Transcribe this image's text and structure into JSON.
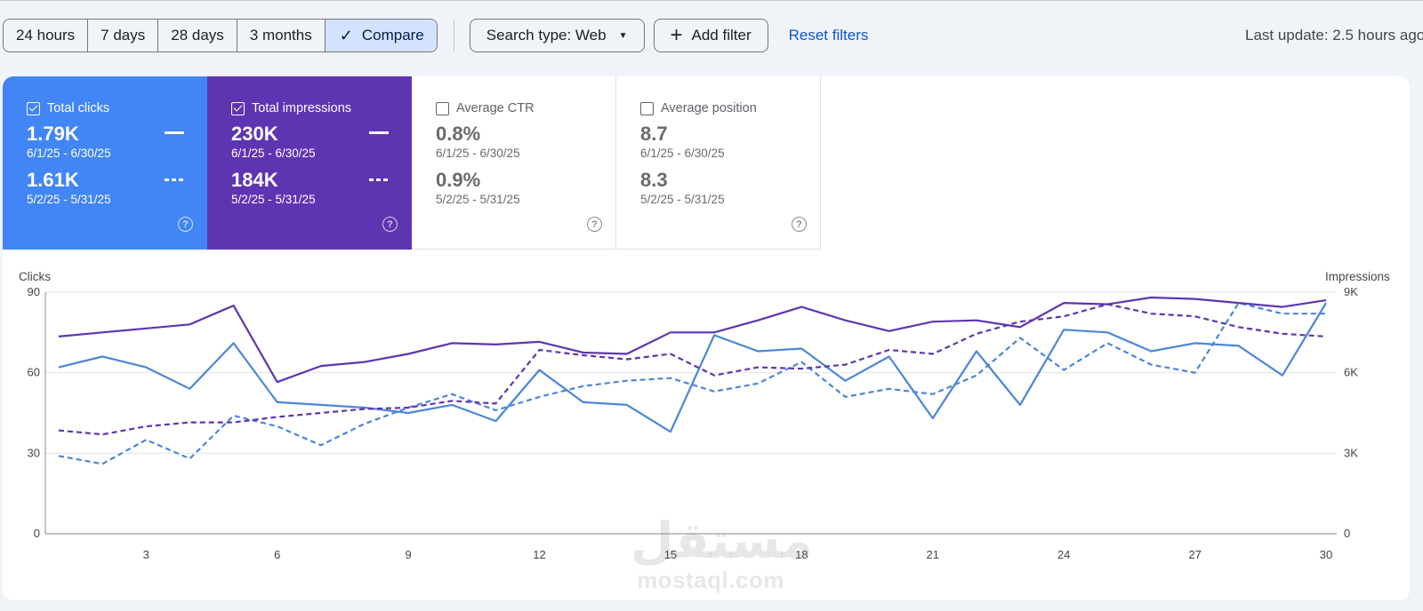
{
  "toolbar": {
    "ranges": [
      {
        "label": "24 hours",
        "active": false
      },
      {
        "label": "7 days",
        "active": false
      },
      {
        "label": "28 days",
        "active": false
      },
      {
        "label": "3 months",
        "active": false
      },
      {
        "label": "Compare",
        "active": true
      }
    ],
    "search_type_label": "Search type: Web",
    "add_filter_label": "Add filter",
    "reset_filters_label": "Reset filters",
    "last_update": "Last update: 2.5 hours ago"
  },
  "metrics": [
    {
      "title": "Total clicks",
      "checked": true,
      "current_value": "1.79K",
      "current_range": "6/1/25 - 6/30/25",
      "previous_value": "1.61K",
      "previous_range": "5/2/25 - 5/31/25",
      "color": "#4285f4"
    },
    {
      "title": "Total impressions",
      "checked": true,
      "current_value": "230K",
      "current_range": "6/1/25 - 6/30/25",
      "previous_value": "184K",
      "previous_range": "5/2/25 - 5/31/25",
      "color": "#5e35b1"
    },
    {
      "title": "Average CTR",
      "checked": false,
      "current_value": "0.8%",
      "current_range": "6/1/25 - 6/30/25",
      "previous_value": "0.9%",
      "previous_range": "5/2/25 - 5/31/25"
    },
    {
      "title": "Average position",
      "checked": false,
      "current_value": "8.7",
      "current_range": "6/1/25 - 6/30/25",
      "previous_value": "8.3",
      "previous_range": "5/2/25 - 5/31/25"
    }
  ],
  "help_icon_glyph": "?",
  "chart_data": {
    "type": "line",
    "ylabel_left": "Clicks",
    "ylabel_right": "Impressions",
    "x": [
      1,
      2,
      3,
      4,
      5,
      6,
      7,
      8,
      9,
      10,
      11,
      12,
      13,
      14,
      15,
      16,
      17,
      18,
      19,
      20,
      21,
      22,
      23,
      24,
      25,
      26,
      27,
      28,
      29,
      30
    ],
    "x_ticks": [
      "3",
      "6",
      "9",
      "12",
      "15",
      "18",
      "21",
      "24",
      "27",
      "30"
    ],
    "x_tick_values": [
      3,
      6,
      9,
      12,
      15,
      18,
      21,
      24,
      27,
      30
    ],
    "y_left_ticks": [
      "0",
      "30",
      "60",
      "90"
    ],
    "y_right_ticks": [
      "0",
      "3K",
      "6K",
      "9K"
    ],
    "ylim_left": [
      0,
      90
    ],
    "ylim_right": [
      0,
      9000
    ],
    "grid": true,
    "series": [
      {
        "name": "Total clicks",
        "axis": "left",
        "style": "solid",
        "color": "#4a86d8",
        "values": [
          62,
          66,
          62,
          54,
          71,
          49,
          48,
          47,
          45,
          48,
          42,
          61,
          49,
          48,
          38,
          74,
          68,
          69,
          57,
          66,
          43,
          68,
          48,
          76,
          75,
          68,
          71,
          70,
          59,
          86
        ]
      },
      {
        "name": "Total clicks",
        "axis": "left",
        "style": "dashed",
        "color": "#4a86d8",
        "values": [
          29,
          26,
          35,
          28,
          44,
          40,
          33,
          41,
          47,
          52,
          46,
          51,
          55,
          57,
          58,
          53,
          56,
          64,
          51,
          54,
          52,
          59,
          73,
          61,
          71,
          63,
          60,
          86,
          82,
          82
        ]
      },
      {
        "name": "Total impressions",
        "axis": "right",
        "style": "solid",
        "color": "#5e35b1",
        "values": [
          7350,
          7500,
          7650,
          7800,
          8500,
          5650,
          6250,
          6400,
          6700,
          7100,
          7050,
          7150,
          6750,
          6700,
          7500,
          7500,
          7950,
          8450,
          7950,
          7550,
          7900,
          7950,
          7700,
          8600,
          8550,
          8800,
          8750,
          8600,
          8450,
          8700
        ]
      },
      {
        "name": "Total impressions",
        "axis": "right",
        "style": "dashed",
        "color": "#5e35b1",
        "values": [
          3850,
          3700,
          4000,
          4150,
          4150,
          4350,
          4500,
          4650,
          4700,
          4950,
          4850,
          6850,
          6650,
          6500,
          6700,
          5900,
          6200,
          6150,
          6300,
          6850,
          6700,
          7450,
          7900,
          8100,
          8550,
          8200,
          8100,
          7700,
          7450,
          7350
        ]
      }
    ]
  },
  "watermark": {
    "arabic": "مستقل",
    "latin": "mostaql.com"
  }
}
